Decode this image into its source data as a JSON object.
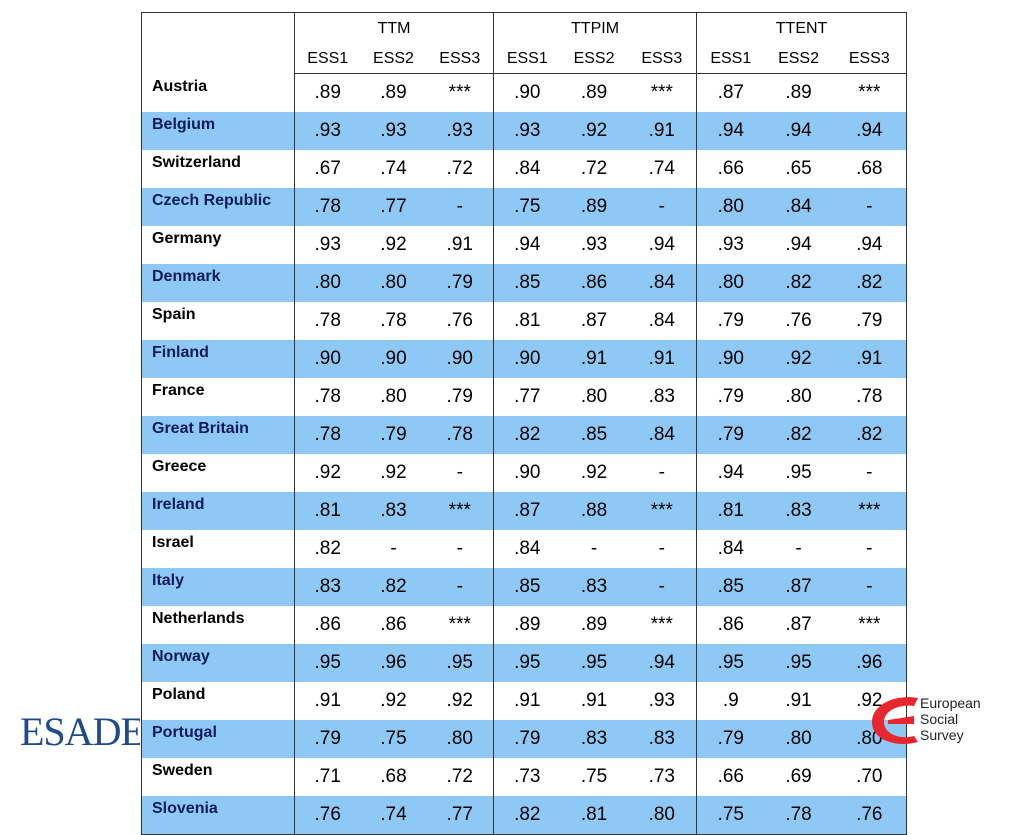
{
  "table": {
    "groups": [
      "TTM",
      "TTPIM",
      "TTENT"
    ],
    "subcols": [
      "ESS1",
      "ESS2",
      "ESS3"
    ],
    "rows": [
      {
        "country": "Austria",
        "values": [
          ".89",
          ".89",
          "***",
          ".90",
          ".89",
          "***",
          ".87",
          ".89",
          "***"
        ]
      },
      {
        "country": "Belgium",
        "values": [
          ".93",
          ".93",
          ".93",
          ".93",
          ".92",
          ".91",
          ".94",
          ".94",
          ".94"
        ]
      },
      {
        "country": "Switzerland",
        "values": [
          ".67",
          ".74",
          ".72",
          ".84",
          ".72",
          ".74",
          ".66",
          ".65",
          ".68"
        ]
      },
      {
        "country": "Czech Republic",
        "values": [
          ".78",
          ".77",
          "-",
          ".75",
          ".89",
          "-",
          ".80",
          ".84",
          "-"
        ]
      },
      {
        "country": "Germany",
        "values": [
          ".93",
          ".92",
          ".91",
          ".94",
          ".93",
          ".94",
          ".93",
          ".94",
          ".94"
        ]
      },
      {
        "country": "Denmark",
        "values": [
          ".80",
          ".80",
          ".79",
          ".85",
          ".86",
          ".84",
          ".80",
          ".82",
          ".82"
        ]
      },
      {
        "country": "Spain",
        "values": [
          ".78",
          ".78",
          ".76",
          ".81",
          ".87",
          ".84",
          ".79",
          ".76",
          ".79"
        ]
      },
      {
        "country": "Finland",
        "values": [
          ".90",
          ".90",
          ".90",
          ".90",
          ".91",
          ".91",
          ".90",
          ".92",
          ".91"
        ]
      },
      {
        "country": "France",
        "values": [
          ".78",
          ".80",
          ".79",
          ".77",
          ".80",
          ".83",
          ".79",
          ".80",
          ".78"
        ]
      },
      {
        "country": "Great Britain",
        "values": [
          ".78",
          ".79",
          ".78",
          ".82",
          ".85",
          ".84",
          ".79",
          ".82",
          ".82"
        ]
      },
      {
        "country": "Greece",
        "values": [
          ".92",
          ".92",
          "-",
          ".90",
          ".92",
          "-",
          ".94",
          ".95",
          "-"
        ]
      },
      {
        "country": "Ireland",
        "values": [
          ".81",
          ".83",
          "***",
          ".87",
          ".88",
          "***",
          ".81",
          ".83",
          "***"
        ]
      },
      {
        "country": "Israel",
        "values": [
          ".82",
          "-",
          "-",
          ".84",
          "-",
          "-",
          ".84",
          "-",
          "-"
        ]
      },
      {
        "country": "Italy",
        "values": [
          ".83",
          ".82",
          "-",
          ".85",
          ".83",
          "-",
          ".85",
          ".87",
          "-"
        ]
      },
      {
        "country": "Netherlands",
        "values": [
          ".86",
          ".86",
          "***",
          ".89",
          ".89",
          "***",
          ".86",
          ".87",
          "***"
        ]
      },
      {
        "country": "Norway",
        "values": [
          ".95",
          ".96",
          ".95",
          ".95",
          ".95",
          ".94",
          ".95",
          ".95",
          ".96"
        ]
      },
      {
        "country": "Poland",
        "values": [
          ".91",
          ".92",
          ".92",
          ".91",
          ".91",
          ".93",
          ".9",
          ".91",
          ".92"
        ]
      },
      {
        "country": "Portugal",
        "values": [
          ".79",
          ".75",
          ".80",
          ".79",
          ".83",
          ".83",
          ".79",
          ".80",
          ".80"
        ]
      },
      {
        "country": "Sweden",
        "values": [
          ".71",
          ".68",
          ".72",
          ".73",
          ".75",
          ".73",
          ".66",
          ".69",
          ".70"
        ]
      },
      {
        "country": "Slovenia",
        "values": [
          ".76",
          ".74",
          ".77",
          ".82",
          ".81",
          ".80",
          ".75",
          ".78",
          ".76"
        ]
      }
    ]
  },
  "colors": {
    "alt_row": "#8ec9f5",
    "esade_blue": "#1f4a8c",
    "ess_red": "#e8262f"
  },
  "logos": {
    "esade": "ESADE",
    "ess_lines": [
      "European",
      "Social",
      "Survey"
    ]
  }
}
